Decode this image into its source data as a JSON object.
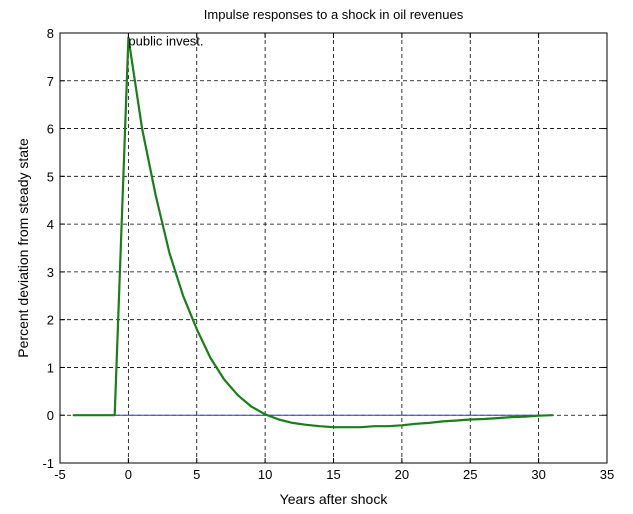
{
  "chart_data": {
    "type": "line",
    "title": "Impulse responses to a shock in oil revenues",
    "xlabel": "Years after shock",
    "ylabel": "Percent deviation from steady state",
    "xlim": [
      -5,
      35
    ],
    "ylim": [
      -1,
      8
    ],
    "xticks": [
      -5,
      0,
      5,
      10,
      15,
      20,
      25,
      30,
      35
    ],
    "yticks": [
      -1,
      0,
      1,
      2,
      3,
      4,
      5,
      6,
      7,
      8
    ],
    "xtick_labels": [
      "-5",
      "0",
      "5",
      "10",
      "15",
      "20",
      "25",
      "30",
      "35"
    ],
    "ytick_labels": [
      "-1",
      "0",
      "1",
      "2",
      "3",
      "4",
      "5",
      "6",
      "7",
      "8"
    ],
    "grid": true,
    "grid_style": "dashed",
    "annotations": [
      {
        "text": "public invest.",
        "x": 0,
        "y": 7.95
      }
    ],
    "series": [
      {
        "color": "#1a7f1a",
        "x": [
          -4,
          -3,
          -2,
          -1,
          0,
          1,
          2,
          3,
          4,
          5,
          6,
          7,
          8,
          9,
          10,
          11,
          12,
          13,
          14,
          15,
          16,
          17,
          18,
          19,
          20,
          21,
          22,
          23,
          24,
          25,
          26,
          27,
          28,
          29,
          30,
          31
        ],
        "y": [
          0,
          0,
          0,
          0,
          7.9,
          6.0,
          4.6,
          3.4,
          2.5,
          1.8,
          1.2,
          0.75,
          0.42,
          0.18,
          0.02,
          -0.09,
          -0.16,
          -0.2,
          -0.23,
          -0.25,
          -0.25,
          -0.25,
          -0.23,
          -0.23,
          -0.21,
          -0.18,
          -0.16,
          -0.13,
          -0.11,
          -0.09,
          -0.08,
          -0.06,
          -0.04,
          -0.03,
          -0.01,
          0
        ]
      },
      {
        "color": "#3333cc",
        "x": [
          -4,
          31
        ],
        "y": [
          0,
          0
        ]
      }
    ]
  }
}
